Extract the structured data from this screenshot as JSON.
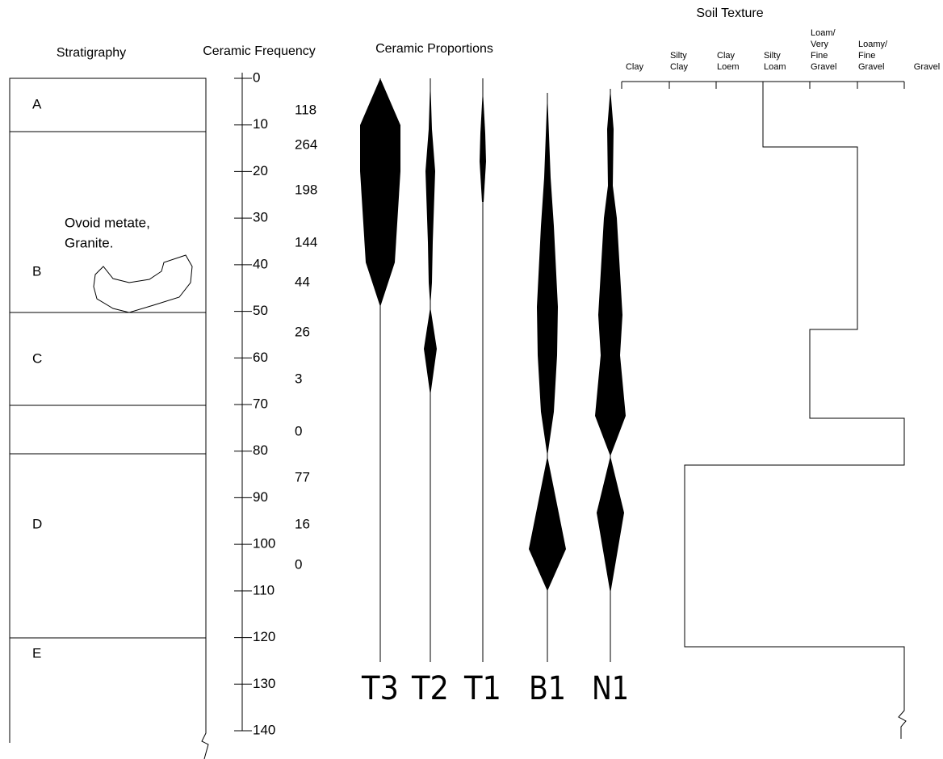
{
  "headers": {
    "stratigraphy": "Stratigraphy",
    "ceramic_frequency": "Ceramic Frequency",
    "ceramic_proportions": "Ceramic Proportions",
    "soil_texture": "Soil Texture"
  },
  "strata": [
    "A",
    "B",
    "C",
    "D",
    "E"
  ],
  "note": [
    "Ovoid metate,",
    "Granite."
  ],
  "depth_ticks": [
    0,
    10,
    20,
    30,
    40,
    50,
    60,
    70,
    80,
    90,
    100,
    110,
    120,
    130,
    140
  ],
  "frequencies": [
    118,
    264,
    198,
    144,
    44,
    26,
    3,
    0,
    77,
    16,
    0
  ],
  "types": [
    "T3",
    "T2",
    "T1",
    "B1",
    "N1"
  ],
  "soil_classes": [
    [
      "Clay"
    ],
    [
      "Silty",
      "Clay"
    ],
    [
      "Clay",
      "Loem"
    ],
    [
      "Silty",
      "Loam"
    ],
    [
      "Loam/",
      "Very",
      "Fine",
      "Gravel"
    ],
    [
      "Loamy/",
      "Fine",
      "Gravel"
    ],
    [
      "Gravel"
    ]
  ]
}
